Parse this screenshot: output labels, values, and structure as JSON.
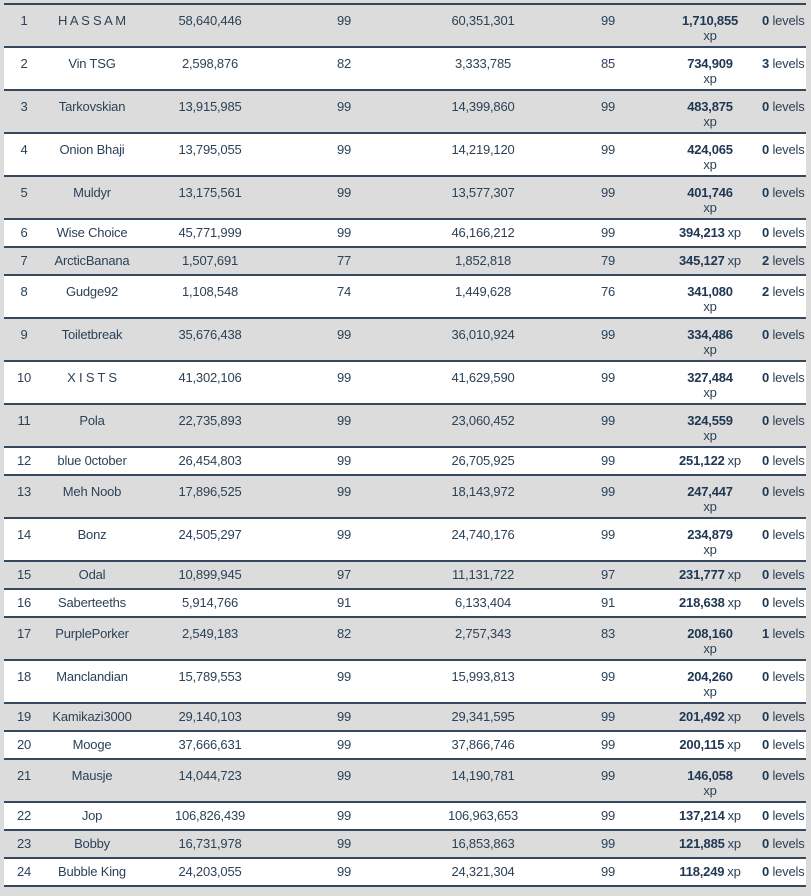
{
  "colors": {
    "page_background": "#dcdcdc",
    "row_gray": "#dcdcdc",
    "row_white": "#ffffff",
    "row_border": "#36485f",
    "text": "#2c4257",
    "text_bold": "#1f3752"
  },
  "table": {
    "xp_suffix": "xp",
    "levels_suffix": "levels",
    "rows": [
      {
        "rank": "1",
        "name": "H A S S A M",
        "start_xp": "58,640,446",
        "start_level": "99",
        "end_xp": "60,351,301",
        "end_level": "99",
        "xp_gained": "1,710,855",
        "xp_wrap": true,
        "levels_gained": "0"
      },
      {
        "rank": "2",
        "name": "Vin TSG",
        "start_xp": "2,598,876",
        "start_level": "82",
        "end_xp": "3,333,785",
        "end_level": "85",
        "xp_gained": "734,909",
        "xp_wrap": true,
        "levels_gained": "3"
      },
      {
        "rank": "3",
        "name": "Tarkovskian",
        "start_xp": "13,915,985",
        "start_level": "99",
        "end_xp": "14,399,860",
        "end_level": "99",
        "xp_gained": "483,875",
        "xp_wrap": true,
        "levels_gained": "0"
      },
      {
        "rank": "4",
        "name": "Onion Bhaji",
        "start_xp": "13,795,055",
        "start_level": "99",
        "end_xp": "14,219,120",
        "end_level": "99",
        "xp_gained": "424,065",
        "xp_wrap": true,
        "levels_gained": "0"
      },
      {
        "rank": "5",
        "name": "Muldyr",
        "start_xp": "13,175,561",
        "start_level": "99",
        "end_xp": "13,577,307",
        "end_level": "99",
        "xp_gained": "401,746",
        "xp_wrap": true,
        "levels_gained": "0"
      },
      {
        "rank": "6",
        "name": "Wise Choice",
        "start_xp": "45,771,999",
        "start_level": "99",
        "end_xp": "46,166,212",
        "end_level": "99",
        "xp_gained": "394,213",
        "xp_wrap": false,
        "levels_gained": "0"
      },
      {
        "rank": "7",
        "name": "ArcticBanana",
        "start_xp": "1,507,691",
        "start_level": "77",
        "end_xp": "1,852,818",
        "end_level": "79",
        "xp_gained": "345,127",
        "xp_wrap": false,
        "levels_gained": "2"
      },
      {
        "rank": "8",
        "name": "Gudge92",
        "start_xp": "1,108,548",
        "start_level": "74",
        "end_xp": "1,449,628",
        "end_level": "76",
        "xp_gained": "341,080",
        "xp_wrap": true,
        "levels_gained": "2"
      },
      {
        "rank": "9",
        "name": "Toiletbreak",
        "start_xp": "35,676,438",
        "start_level": "99",
        "end_xp": "36,010,924",
        "end_level": "99",
        "xp_gained": "334,486",
        "xp_wrap": true,
        "levels_gained": "0"
      },
      {
        "rank": "10",
        "name": "X I S T S",
        "start_xp": "41,302,106",
        "start_level": "99",
        "end_xp": "41,629,590",
        "end_level": "99",
        "xp_gained": "327,484",
        "xp_wrap": true,
        "levels_gained": "0"
      },
      {
        "rank": "11",
        "name": "Pola",
        "start_xp": "22,735,893",
        "start_level": "99",
        "end_xp": "23,060,452",
        "end_level": "99",
        "xp_gained": "324,559",
        "xp_wrap": true,
        "levels_gained": "0"
      },
      {
        "rank": "12",
        "name": "blue 0ctober",
        "start_xp": "26,454,803",
        "start_level": "99",
        "end_xp": "26,705,925",
        "end_level": "99",
        "xp_gained": "251,122",
        "xp_wrap": false,
        "levels_gained": "0"
      },
      {
        "rank": "13",
        "name": "Meh Noob",
        "start_xp": "17,896,525",
        "start_level": "99",
        "end_xp": "18,143,972",
        "end_level": "99",
        "xp_gained": "247,447",
        "xp_wrap": true,
        "levels_gained": "0"
      },
      {
        "rank": "14",
        "name": "Bonz",
        "start_xp": "24,505,297",
        "start_level": "99",
        "end_xp": "24,740,176",
        "end_level": "99",
        "xp_gained": "234,879",
        "xp_wrap": true,
        "levels_gained": "0"
      },
      {
        "rank": "15",
        "name": "Odal",
        "start_xp": "10,899,945",
        "start_level": "97",
        "end_xp": "11,131,722",
        "end_level": "97",
        "xp_gained": "231,777",
        "xp_wrap": false,
        "levels_gained": "0"
      },
      {
        "rank": "16",
        "name": "Saberteeths",
        "start_xp": "5,914,766",
        "start_level": "91",
        "end_xp": "6,133,404",
        "end_level": "91",
        "xp_gained": "218,638",
        "xp_wrap": false,
        "levels_gained": "0"
      },
      {
        "rank": "17",
        "name": "PurplePorker",
        "start_xp": "2,549,183",
        "start_level": "82",
        "end_xp": "2,757,343",
        "end_level": "83",
        "xp_gained": "208,160",
        "xp_wrap": true,
        "levels_gained": "1"
      },
      {
        "rank": "18",
        "name": "Manclandian",
        "start_xp": "15,789,553",
        "start_level": "99",
        "end_xp": "15,993,813",
        "end_level": "99",
        "xp_gained": "204,260",
        "xp_wrap": true,
        "levels_gained": "0"
      },
      {
        "rank": "19",
        "name": "Kamikazi3000",
        "start_xp": "29,140,103",
        "start_level": "99",
        "end_xp": "29,341,595",
        "end_level": "99",
        "xp_gained": "201,492",
        "xp_wrap": false,
        "levels_gained": "0"
      },
      {
        "rank": "20",
        "name": "Mooge",
        "start_xp": "37,666,631",
        "start_level": "99",
        "end_xp": "37,866,746",
        "end_level": "99",
        "xp_gained": "200,115",
        "xp_wrap": false,
        "levels_gained": "0"
      },
      {
        "rank": "21",
        "name": "Mausje",
        "start_xp": "14,044,723",
        "start_level": "99",
        "end_xp": "14,190,781",
        "end_level": "99",
        "xp_gained": "146,058",
        "xp_wrap": true,
        "levels_gained": "0"
      },
      {
        "rank": "22",
        "name": "Jop",
        "start_xp": "106,826,439",
        "start_level": "99",
        "end_xp": "106,963,653",
        "end_level": "99",
        "xp_gained": "137,214",
        "xp_wrap": false,
        "levels_gained": "0"
      },
      {
        "rank": "23",
        "name": "Bobby",
        "start_xp": "16,731,978",
        "start_level": "99",
        "end_xp": "16,853,863",
        "end_level": "99",
        "xp_gained": "121,885",
        "xp_wrap": false,
        "levels_gained": "0"
      },
      {
        "rank": "24",
        "name": "Bubble King",
        "start_xp": "24,203,055",
        "start_level": "99",
        "end_xp": "24,321,304",
        "end_level": "99",
        "xp_gained": "118,249",
        "xp_wrap": false,
        "levels_gained": "0"
      }
    ]
  }
}
